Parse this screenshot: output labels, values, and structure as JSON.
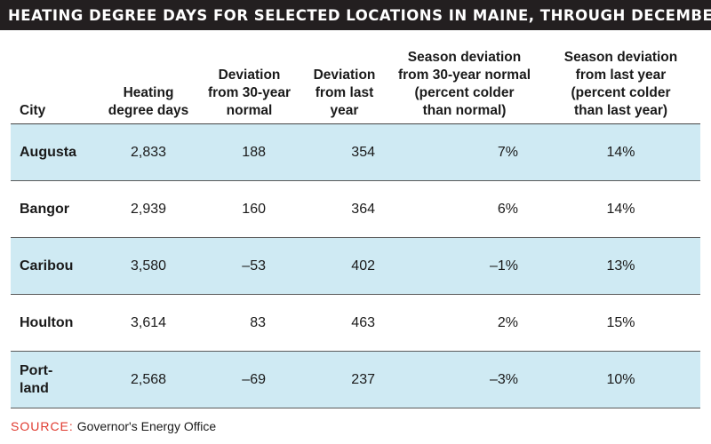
{
  "title": "HEATING DEGREE DAYS FOR SELECTED LOCATIONS IN MAINE, THROUGH DECEMBER",
  "table": {
    "headers": {
      "city": [
        "City"
      ],
      "hdd": [
        "Heating",
        "degree days"
      ],
      "dev_normal": [
        "Deviation",
        "from 30-year",
        "normal"
      ],
      "dev_last": [
        "Deviation",
        "from last",
        "year"
      ],
      "season_normal": [
        "Season deviation",
        "from 30-year normal",
        "(percent colder",
        "than normal)"
      ],
      "season_last": [
        "Season deviation",
        "from last year",
        "(percent colder",
        "than last year)"
      ]
    },
    "rows": [
      {
        "city": [
          "Augusta"
        ],
        "hdd": "2,833",
        "dev_normal": "188",
        "dev_last": "354",
        "season_normal": "7%",
        "season_last": "14%"
      },
      {
        "city": [
          "Bangor"
        ],
        "hdd": "2,939",
        "dev_normal": "160",
        "dev_last": "364",
        "season_normal": "6%",
        "season_last": "14%"
      },
      {
        "city": [
          "Caribou"
        ],
        "hdd": "3,580",
        "dev_normal": "–53",
        "dev_last": "402",
        "season_normal": "–1%",
        "season_last": "13%"
      },
      {
        "city": [
          "Houlton"
        ],
        "hdd": "3,614",
        "dev_normal": "83",
        "dev_last": "463",
        "season_normal": "2%",
        "season_last": "15%"
      },
      {
        "city": [
          "Port-",
          "land"
        ],
        "hdd": "2,568",
        "dev_normal": "–69",
        "dev_last": "237",
        "season_normal": "–3%",
        "season_last": "10%"
      }
    ],
    "shaded_row_color": "#cfeaf3"
  },
  "source": {
    "label": "SOURCE:",
    "value": "Governor's Energy Office"
  },
  "colors": {
    "title_bar": "#231f20",
    "source_label": "#e03a2f"
  }
}
